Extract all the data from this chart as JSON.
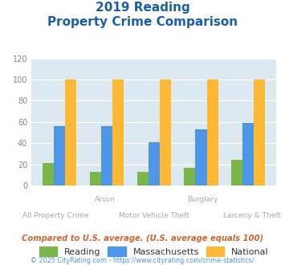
{
  "title_line1": "2019 Reading",
  "title_line2": "Property Crime Comparison",
  "categories": [
    "All Property Crime",
    "Arson",
    "Motor Vehicle Theft",
    "Burglary",
    "Larceny & Theft"
  ],
  "x_labels_row1": [
    "",
    "Arson",
    "",
    "Burglary",
    ""
  ],
  "x_labels_row2": [
    "All Property Crime",
    "",
    "Motor Vehicle Theft",
    "",
    "Larceny & Theft"
  ],
  "reading": [
    21,
    13,
    13,
    17,
    24
  ],
  "massachusetts": [
    56,
    56,
    41,
    53,
    59
  ],
  "national": [
    100,
    100,
    100,
    100,
    100
  ],
  "reading_color": "#7ab648",
  "massachusetts_color": "#4d96e8",
  "national_color": "#ffb833",
  "bg_color": "#dce9f0",
  "title_color": "#1a5fa8",
  "ylabel_max": 120,
  "yticks": [
    0,
    20,
    40,
    60,
    80,
    100,
    120
  ],
  "footnote": "Compared to U.S. average. (U.S. average equals 100)",
  "copyright": "© 2025 CityRating.com - https://www.cityrating.com/crime-statistics/",
  "legend_labels": [
    "Reading",
    "Massachusetts",
    "National"
  ],
  "footnote_color": "#cc6633",
  "copyright_color": "#4d96e8"
}
